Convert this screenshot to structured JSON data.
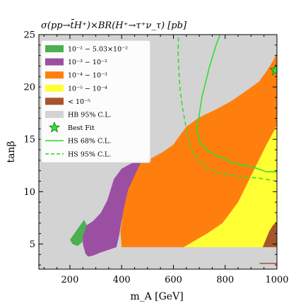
{
  "chart_data": {
    "type": "heatmap",
    "title": "σ(pp→t̄H⁺)×BR(H⁺→τ⁺ν_τ) [pb]",
    "xlabel": "m_A [GeV]",
    "ylabel": "tanβ",
    "xlim": [
      80,
      1000
    ],
    "ylim": [
      2.6,
      25
    ],
    "xticks": [
      200,
      400,
      600,
      800,
      1000
    ],
    "yticks": [
      5,
      10,
      15,
      20,
      25
    ],
    "grid": false,
    "legend_position": "top-left",
    "legend": [
      {
        "label": "10⁻² − 5.03×10⁻²",
        "color": "#4caf50",
        "kind": "patch"
      },
      {
        "label": "10⁻³ − 10⁻²",
        "color": "#9b4fa3",
        "kind": "patch"
      },
      {
        "label": "10⁻⁴ − 10⁻³",
        "color": "#ff7f0e",
        "kind": "patch"
      },
      {
        "label": "10⁻⁵ − 10⁻⁴",
        "color": "#ffff33",
        "kind": "patch"
      },
      {
        "label": "< 10⁻⁵",
        "color": "#a65628",
        "kind": "patch"
      },
      {
        "label": "HB 95% C.L.",
        "color": "#d3d3d3",
        "kind": "patch"
      },
      {
        "label": "Best Fit",
        "color": "#33dd33",
        "kind": "star"
      },
      {
        "label": "HS 68% C.L.",
        "color": "#33dd33",
        "kind": "solid"
      },
      {
        "label": "HS 95% C.L.",
        "color": "#33dd33",
        "kind": "dashed"
      }
    ],
    "best_fit": {
      "x": 995,
      "y": 21.6
    },
    "regions": [
      {
        "name": "10⁻² − 5.03×10⁻²",
        "color": "#4caf50",
        "points": [
          [
            200,
            5.4
          ],
          [
            240,
            6.8
          ],
          [
            255,
            7.3
          ],
          [
            265,
            6.8
          ],
          [
            258,
            5.8
          ],
          [
            248,
            5.2
          ],
          [
            230,
            4.8
          ],
          [
            210,
            5.0
          ]
        ]
      },
      {
        "name": "10⁻³ − 10⁻²",
        "color": "#9b4fa3",
        "points": [
          [
            250,
            5.8
          ],
          [
            265,
            6.8
          ],
          [
            290,
            7.2
          ],
          [
            320,
            8.0
          ],
          [
            345,
            9.2
          ],
          [
            370,
            11.2
          ],
          [
            400,
            12.2
          ],
          [
            430,
            12.6
          ],
          [
            465,
            13.0
          ],
          [
            480,
            12.8
          ],
          [
            470,
            12.0
          ],
          [
            450,
            10.8
          ],
          [
            420,
            9.0
          ],
          [
            400,
            7.3
          ],
          [
            390,
            5.8
          ],
          [
            380,
            4.7
          ],
          [
            320,
            4.2
          ],
          [
            290,
            3.9
          ],
          [
            270,
            3.8
          ],
          [
            260,
            4.1
          ],
          [
            250,
            5.0
          ]
        ]
      },
      {
        "name": "10⁻⁴ − 10⁻³",
        "color": "#ff7f0e",
        "points": [
          [
            400,
            4.7
          ],
          [
            395,
            6.2
          ],
          [
            405,
            8.0
          ],
          [
            425,
            10.2
          ],
          [
            455,
            11.8
          ],
          [
            475,
            12.8
          ],
          [
            500,
            13.0
          ],
          [
            560,
            13.8
          ],
          [
            600,
            14.5
          ],
          [
            620,
            15.2
          ],
          [
            650,
            16.2
          ],
          [
            700,
            17.1
          ],
          [
            760,
            17.8
          ],
          [
            820,
            18.6
          ],
          [
            880,
            19.6
          ],
          [
            930,
            20.5
          ],
          [
            960,
            21.5
          ],
          [
            985,
            22.5
          ],
          [
            1000,
            23.3
          ],
          [
            1000,
            16.3
          ],
          [
            960,
            14.5
          ],
          [
            900,
            11.5
          ],
          [
            850,
            9.0
          ],
          [
            790,
            7.0
          ],
          [
            730,
            6.0
          ],
          [
            640,
            4.7
          ],
          [
            560,
            4.7
          ]
        ]
      },
      {
        "name": "10⁻⁵ − 10⁻⁴",
        "color": "#ffff33",
        "points": [
          [
            560,
            4.7
          ],
          [
            640,
            4.7
          ],
          [
            730,
            6.0
          ],
          [
            790,
            7.0
          ],
          [
            850,
            9.0
          ],
          [
            900,
            11.5
          ],
          [
            960,
            14.5
          ],
          [
            1000,
            16.3
          ],
          [
            1000,
            4.7
          ]
        ]
      },
      {
        "name": "< 10⁻⁵",
        "color": "#a65628",
        "points": [
          [
            945,
            4.7
          ],
          [
            955,
            5.3
          ],
          [
            970,
            6.2
          ],
          [
            985,
            6.8
          ],
          [
            1000,
            7.1
          ],
          [
            1000,
            4.7
          ]
        ]
      },
      {
        "name": "< 10⁻⁵",
        "color": "#a65628",
        "points": [
          [
            933,
            3.1
          ],
          [
            1000,
            3.1
          ],
          [
            1000,
            3.2
          ],
          [
            933,
            3.2
          ]
        ]
      }
    ],
    "contours": [
      {
        "name": "HS 68% C.L.",
        "style": "solid",
        "color": "#33dd33",
        "points": [
          [
            1000,
            11.9
          ],
          [
            960,
            11.9
          ],
          [
            900,
            12.4
          ],
          [
            860,
            12.6
          ],
          [
            820,
            12.8
          ],
          [
            790,
            13.3
          ],
          [
            765,
            13.4
          ],
          [
            735,
            13.9
          ],
          [
            705,
            14.6
          ],
          [
            690,
            15.8
          ],
          [
            710,
            19.0
          ],
          [
            740,
            22.0
          ],
          [
            765,
            24.0
          ],
          [
            780,
            25.0
          ]
        ]
      },
      {
        "name": "HS 95% C.L.",
        "style": "dashed",
        "color": "#33dd33",
        "points": [
          [
            1000,
            11.0
          ],
          [
            930,
            11.3
          ],
          [
            870,
            11.4
          ],
          [
            820,
            11.6
          ],
          [
            770,
            11.8
          ],
          [
            730,
            12.3
          ],
          [
            695,
            13.1
          ],
          [
            670,
            14.0
          ],
          [
            650,
            16.0
          ],
          [
            635,
            18.0
          ],
          [
            625,
            20.0
          ],
          [
            620,
            22.0
          ],
          [
            618,
            23.5
          ],
          [
            620,
            25.0
          ]
        ]
      }
    ]
  }
}
